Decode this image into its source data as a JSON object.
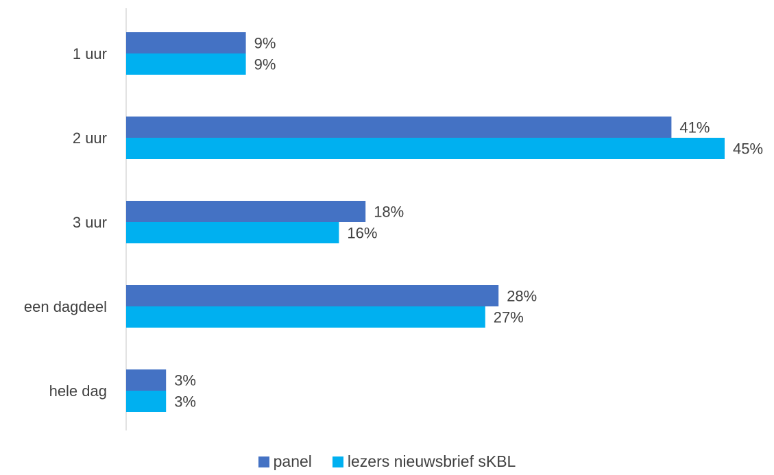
{
  "chart_data": {
    "type": "bar",
    "orientation": "horizontal",
    "categories": [
      "1 uur",
      "2 uur",
      "3 uur",
      "een dagdeel",
      "hele dag"
    ],
    "series": [
      {
        "name": "panel",
        "values": [
          9,
          41,
          18,
          28,
          3
        ],
        "labels": [
          "9%",
          "41%",
          "18%",
          "28%",
          "3%"
        ],
        "color": "#4472C4"
      },
      {
        "name": "lezers nieuwsbrief sKBL",
        "values": [
          9,
          45,
          16,
          27,
          3
        ],
        "labels": [
          "9%",
          "45%",
          "16%",
          "27%",
          "3%"
        ],
        "color": "#00B0F0"
      }
    ],
    "xlim": [
      0,
      45
    ],
    "unit": "%",
    "grid": false,
    "legend": "bottom-center"
  }
}
